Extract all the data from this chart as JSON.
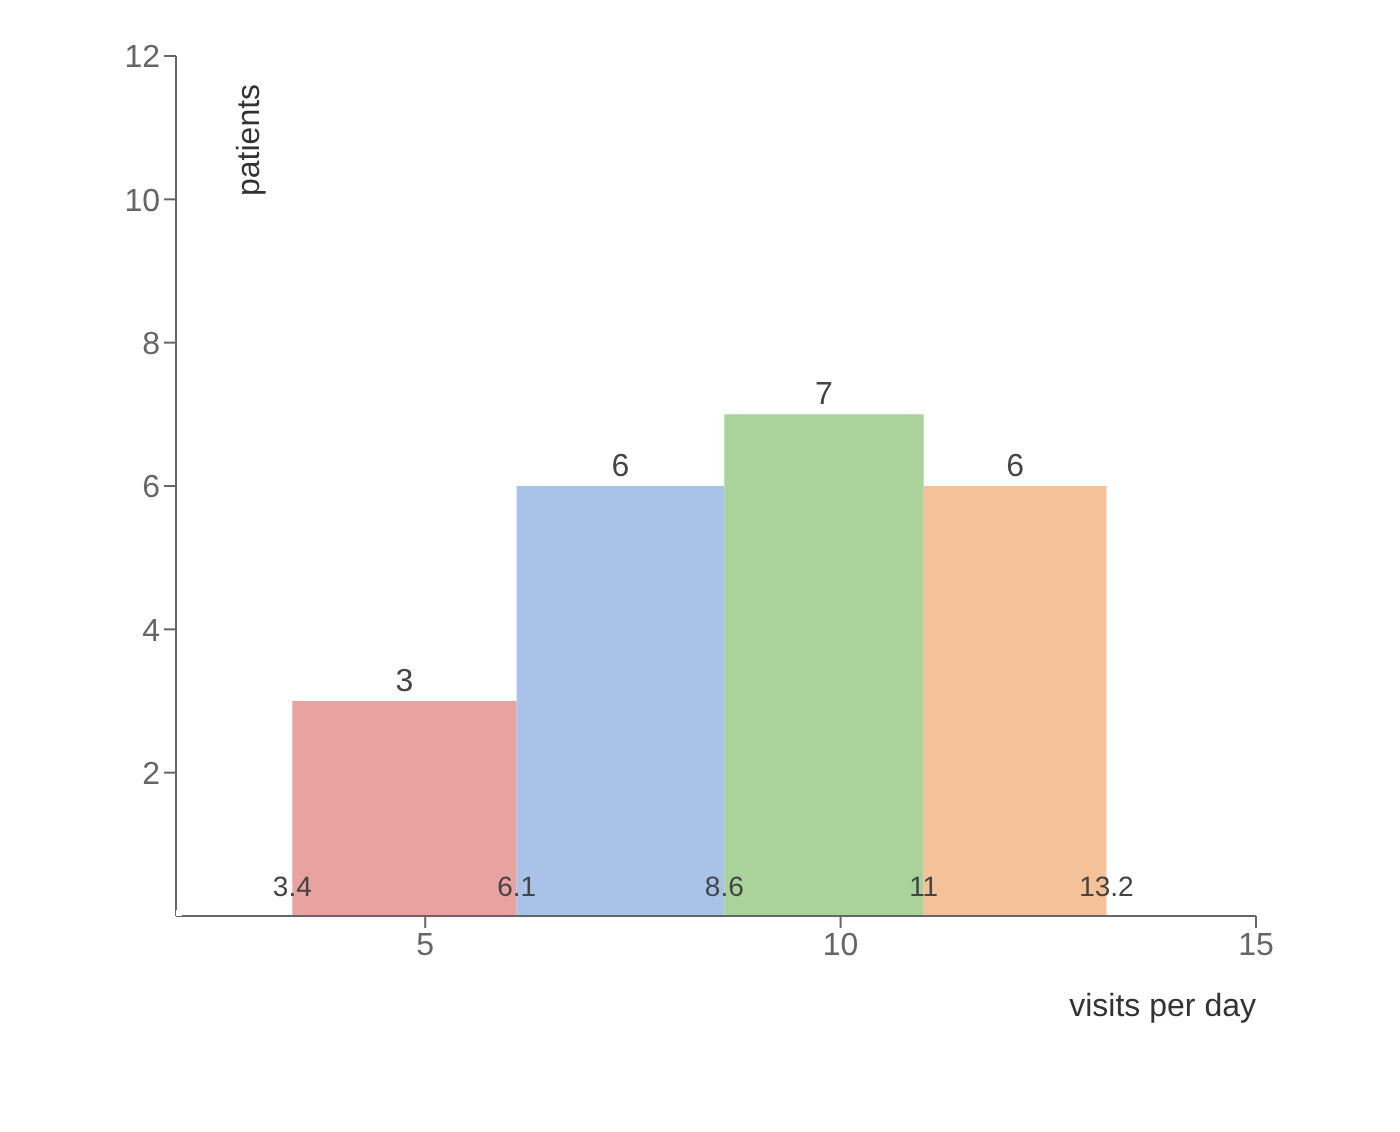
{
  "chart_data": {
    "type": "histogram",
    "xlabel": "visits per day",
    "ylabel": "patients",
    "bins": [
      3.4,
      6.1,
      8.6,
      11,
      13.2
    ],
    "values": [
      3,
      6,
      7,
      6
    ],
    "colors": [
      "#e8a3a0",
      "#a8c2e8",
      "#a9d39a",
      "#f5c198"
    ],
    "data_labels": true,
    "xlim": [
      2,
      15
    ],
    "xticks": [
      5,
      10,
      15
    ],
    "ylim": [
      0,
      12
    ],
    "yticks": [
      2,
      4,
      6,
      8,
      10,
      12
    ],
    "annotations": [
      {
        "text": "3.4",
        "x": 3.4,
        "y": 0
      },
      {
        "text": "6.1",
        "x": 6.1,
        "y": 0
      },
      {
        "text": "8.6",
        "x": 8.6,
        "y": 0
      },
      {
        "text": "11",
        "x": 11,
        "y": 0
      },
      {
        "text": "13.2",
        "x": 13.2,
        "y": 0
      }
    ]
  }
}
